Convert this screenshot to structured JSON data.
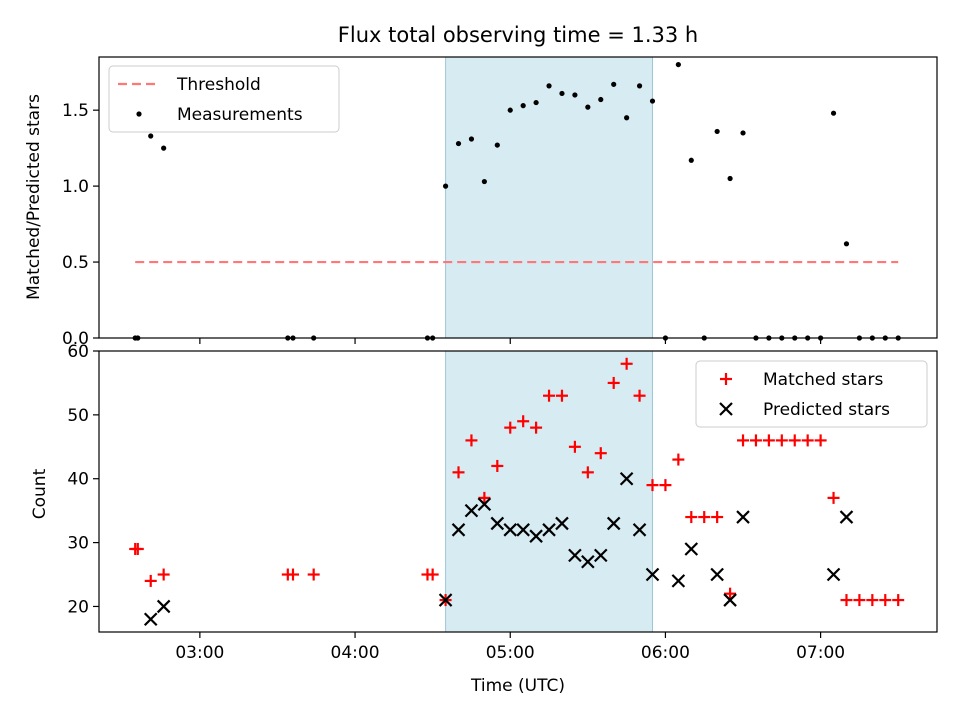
{
  "title": "Flux total observing time = 1.33 h",
  "xlabel": "Time (UTC)",
  "x_ticks": [
    "03:00",
    "04:00",
    "05:00",
    "06:00",
    "07:00"
  ],
  "colors": {
    "highlight": "#add8e6",
    "threshold": "#ff7777",
    "measurements": "#000000",
    "matched": "#ff0000",
    "predicted": "#000000"
  },
  "chart_data": [
    {
      "type": "scatter",
      "ylabel": "Matched/Predicted stars",
      "xlim": [
        "02:21",
        "07:45"
      ],
      "ylim": [
        0,
        1.85
      ],
      "y_ticks": [
        "0.0",
        "0.5",
        "1.0",
        "1.5"
      ],
      "highlight_span": [
        "04:35",
        "05:55"
      ],
      "legend": {
        "position": "top-left",
        "entries": [
          "Threshold",
          "Measurements"
        ]
      },
      "threshold": {
        "name": "Threshold",
        "x": [
          "02:35",
          "07:30"
        ],
        "y": 0.5
      },
      "series": [
        {
          "name": "Measurements",
          "points": [
            [
              "02:35",
              0
            ],
            [
              "02:36",
              0
            ],
            [
              "02:41",
              1.33
            ],
            [
              "02:46",
              1.25
            ],
            [
              "03:34",
              0
            ],
            [
              "03:36",
              0
            ],
            [
              "03:44",
              0
            ],
            [
              "04:28",
              0
            ],
            [
              "04:30",
              0
            ],
            [
              "04:35",
              1.0
            ],
            [
              "04:40",
              1.28
            ],
            [
              "04:45",
              1.31
            ],
            [
              "04:50",
              1.03
            ],
            [
              "04:55",
              1.27
            ],
            [
              "05:00",
              1.5
            ],
            [
              "05:05",
              1.53
            ],
            [
              "05:10",
              1.55
            ],
            [
              "05:15",
              1.66
            ],
            [
              "05:20",
              1.61
            ],
            [
              "05:25",
              1.6
            ],
            [
              "05:30",
              1.52
            ],
            [
              "05:35",
              1.57
            ],
            [
              "05:40",
              1.67
            ],
            [
              "05:45",
              1.45
            ],
            [
              "05:50",
              1.66
            ],
            [
              "05:55",
              1.56
            ],
            [
              "06:00",
              0
            ],
            [
              "06:05",
              1.8
            ],
            [
              "06:10",
              1.17
            ],
            [
              "06:15",
              0
            ],
            [
              "06:20",
              1.36
            ],
            [
              "06:25",
              1.05
            ],
            [
              "06:30",
              1.35
            ],
            [
              "06:35",
              0
            ],
            [
              "06:40",
              0
            ],
            [
              "06:45",
              0
            ],
            [
              "06:50",
              0
            ],
            [
              "06:55",
              0
            ],
            [
              "07:00",
              0
            ],
            [
              "07:05",
              1.48
            ],
            [
              "07:10",
              0.62
            ],
            [
              "07:15",
              0
            ],
            [
              "07:20",
              0
            ],
            [
              "07:25",
              0
            ],
            [
              "07:30",
              0
            ]
          ]
        }
      ]
    },
    {
      "type": "scatter",
      "ylabel": "Count",
      "xlim": [
        "02:21",
        "07:45"
      ],
      "ylim": [
        16,
        60
      ],
      "y_ticks": [
        "20",
        "30",
        "40",
        "50",
        "60"
      ],
      "highlight_span": [
        "04:35",
        "05:55"
      ],
      "legend": {
        "position": "top-right",
        "entries": [
          "Matched stars",
          "Predicted stars"
        ]
      },
      "series": [
        {
          "name": "Matched stars",
          "marker": "plus",
          "points": [
            [
              "02:35",
              29
            ],
            [
              "02:36",
              29
            ],
            [
              "02:41",
              24
            ],
            [
              "02:46",
              25
            ],
            [
              "03:34",
              25
            ],
            [
              "03:36",
              25
            ],
            [
              "03:44",
              25
            ],
            [
              "04:28",
              25
            ],
            [
              "04:30",
              25
            ],
            [
              "04:35",
              21
            ],
            [
              "04:40",
              41
            ],
            [
              "04:45",
              46
            ],
            [
              "04:50",
              37
            ],
            [
              "04:55",
              42
            ],
            [
              "05:00",
              48
            ],
            [
              "05:05",
              49
            ],
            [
              "05:10",
              48
            ],
            [
              "05:15",
              53
            ],
            [
              "05:20",
              53
            ],
            [
              "05:25",
              45
            ],
            [
              "05:30",
              41
            ],
            [
              "05:35",
              44
            ],
            [
              "05:40",
              55
            ],
            [
              "05:45",
              58
            ],
            [
              "05:50",
              53
            ],
            [
              "05:55",
              39
            ],
            [
              "06:00",
              39
            ],
            [
              "06:05",
              43
            ],
            [
              "06:10",
              34
            ],
            [
              "06:15",
              34
            ],
            [
              "06:20",
              34
            ],
            [
              "06:25",
              22
            ],
            [
              "06:30",
              46
            ],
            [
              "06:35",
              46
            ],
            [
              "06:40",
              46
            ],
            [
              "06:45",
              46
            ],
            [
              "06:50",
              46
            ],
            [
              "06:55",
              46
            ],
            [
              "07:00",
              46
            ],
            [
              "07:05",
              37
            ],
            [
              "07:10",
              21
            ],
            [
              "07:15",
              21
            ],
            [
              "07:20",
              21
            ],
            [
              "07:25",
              21
            ],
            [
              "07:30",
              21
            ]
          ]
        },
        {
          "name": "Predicted stars",
          "marker": "x",
          "points": [
            [
              "02:41",
              18
            ],
            [
              "02:46",
              20
            ],
            [
              "04:35",
              21
            ],
            [
              "04:40",
              32
            ],
            [
              "04:45",
              35
            ],
            [
              "04:50",
              36
            ],
            [
              "04:55",
              33
            ],
            [
              "05:00",
              32
            ],
            [
              "05:05",
              32
            ],
            [
              "05:10",
              31
            ],
            [
              "05:15",
              32
            ],
            [
              "05:20",
              33
            ],
            [
              "05:25",
              28
            ],
            [
              "05:30",
              27
            ],
            [
              "05:35",
              28
            ],
            [
              "05:40",
              33
            ],
            [
              "05:45",
              40
            ],
            [
              "05:50",
              32
            ],
            [
              "05:55",
              25
            ],
            [
              "06:05",
              24
            ],
            [
              "06:10",
              29
            ],
            [
              "06:20",
              25
            ],
            [
              "06:25",
              21
            ],
            [
              "06:30",
              34
            ],
            [
              "07:05",
              25
            ],
            [
              "07:10",
              34
            ]
          ]
        }
      ]
    }
  ]
}
